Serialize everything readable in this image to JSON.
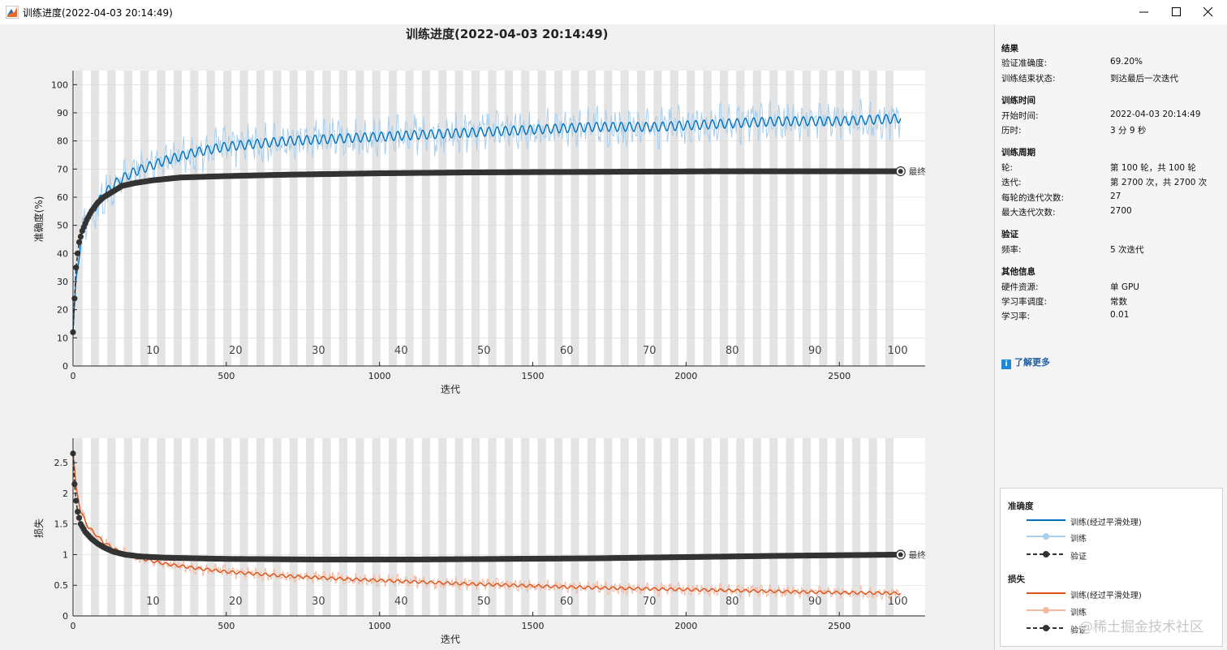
{
  "window": {
    "title": "训练进度(2022-04-03 20:14:49)",
    "minimize_icon": "minimize-icon",
    "maximize_icon": "maximize-icon",
    "close_icon": "close-icon"
  },
  "plot_title": "训练进度(2022-04-03 20:14:49)",
  "colors": {
    "train_acc_smoothed": "#0072bd",
    "train_acc_raw": "#a9cfee",
    "train_loss_smoothed": "#d95319",
    "train_loss_raw": "#f4b9a1",
    "validation": "#333333",
    "epoch_band": "#e4e4e4",
    "plot_bg": "#ffffff"
  },
  "chart_data": [
    {
      "type": "line",
      "name": "accuracy",
      "xlabel": "迭代",
      "ylabel": "准确度(%)",
      "xlim": [
        0,
        2780
      ],
      "ylim": [
        0,
        105
      ],
      "x_ticks": [
        0,
        500,
        1000,
        1500,
        2000,
        2500
      ],
      "y_ticks": [
        0,
        10,
        20,
        30,
        40,
        50,
        60,
        70,
        80,
        90,
        100
      ],
      "epoch_labels": [
        "10",
        "20",
        "30",
        "40",
        "50",
        "60",
        "70",
        "80",
        "90",
        "100"
      ],
      "epochs": 100,
      "iterations_per_epoch": 27,
      "final_marker_label": "最终",
      "series": [
        {
          "name": "训练(经过平滑处理)",
          "x": [
            0,
            10,
            25,
            50,
            100,
            150,
            200,
            300,
            400,
            500,
            700,
            900,
            1100,
            1300,
            1500,
            1700,
            1900,
            2100,
            2300,
            2500,
            2700
          ],
          "values": [
            12,
            30,
            45,
            53,
            61,
            66,
            69,
            73,
            76,
            78,
            80,
            81,
            82,
            83,
            84,
            85,
            85,
            86,
            87,
            87,
            88
          ]
        },
        {
          "name": "验证",
          "x": [
            0,
            5,
            10,
            15,
            20,
            30,
            45,
            60,
            80,
            100,
            130,
            160,
            200,
            260,
            350,
            500,
            700,
            1000,
            1300,
            1700,
            2100,
            2500,
            2700
          ],
          "values": [
            12,
            24,
            35,
            40,
            44,
            48,
            52,
            55,
            58,
            60,
            62,
            64,
            65,
            66,
            67,
            67.5,
            68,
            68.5,
            68.8,
            69,
            69.2,
            69.2,
            69.2
          ]
        }
      ]
    },
    {
      "type": "line",
      "name": "loss",
      "xlabel": "迭代",
      "ylabel": "损失",
      "xlim": [
        0,
        2780
      ],
      "ylim": [
        0,
        2.9
      ],
      "x_ticks": [
        0,
        500,
        1000,
        1500,
        2000,
        2500
      ],
      "y_ticks": [
        0,
        0.5,
        1,
        1.5,
        2,
        2.5
      ],
      "epoch_labels": [
        "10",
        "20",
        "30",
        "40",
        "50",
        "60",
        "70",
        "80",
        "90",
        "100"
      ],
      "epochs": 100,
      "iterations_per_epoch": 27,
      "final_marker_label": "最终",
      "series": [
        {
          "name": "训练(经过平滑处理)",
          "x": [
            0,
            10,
            25,
            50,
            100,
            150,
            200,
            300,
            400,
            500,
            700,
            900,
            1100,
            1300,
            1500,
            1700,
            1900,
            2100,
            2300,
            2500,
            2700
          ],
          "values": [
            2.65,
            2.1,
            1.7,
            1.45,
            1.2,
            1.05,
            0.96,
            0.85,
            0.78,
            0.72,
            0.65,
            0.6,
            0.56,
            0.52,
            0.49,
            0.46,
            0.44,
            0.42,
            0.4,
            0.38,
            0.37
          ]
        },
        {
          "name": "验证",
          "x": [
            0,
            5,
            10,
            15,
            25,
            40,
            60,
            80,
            100,
            130,
            170,
            220,
            300,
            500,
            800,
            1100,
            1400,
            1700,
            2000,
            2300,
            2500,
            2700
          ],
          "values": [
            2.65,
            2.15,
            1.88,
            1.7,
            1.5,
            1.37,
            1.26,
            1.18,
            1.12,
            1.05,
            1.0,
            0.97,
            0.95,
            0.93,
            0.92,
            0.92,
            0.93,
            0.94,
            0.96,
            0.98,
            0.99,
            1.0
          ]
        }
      ]
    }
  ],
  "info_panel": {
    "results": {
      "heading": "结果",
      "rows": [
        {
          "label": "验证准确度:",
          "value": "69.20%"
        },
        {
          "label": "训练结束状态:",
          "value": "到达最后一次迭代"
        }
      ]
    },
    "time": {
      "heading": "训练时间",
      "rows": [
        {
          "label": "开始时间:",
          "value": "2022-04-03 20:14:49"
        },
        {
          "label": "历时:",
          "value": "3 分 9 秒"
        }
      ]
    },
    "cycle": {
      "heading": "训练周期",
      "rows": [
        {
          "label": "轮:",
          "value": "第 100 轮，共 100 轮"
        },
        {
          "label": "迭代:",
          "value": "第 2700 次，共 2700 次"
        },
        {
          "label": "每轮的迭代次数:",
          "value": "27"
        },
        {
          "label": "最大迭代次数:",
          "value": "2700"
        }
      ]
    },
    "validation": {
      "heading": "验证",
      "rows": [
        {
          "label": "频率:",
          "value": "5 次迭代"
        }
      ]
    },
    "other": {
      "heading": "其他信息",
      "rows": [
        {
          "label": "硬件资源:",
          "value": "单 GPU"
        },
        {
          "label": "学习率调度:",
          "value": "常数"
        },
        {
          "label": "学习率:",
          "value": "0.01"
        }
      ]
    },
    "learn_more": "了解更多",
    "learn_more_icon": "info-icon"
  },
  "legend": {
    "accuracy_heading": "准确度",
    "loss_heading": "损失",
    "smoothed": "训练(经过平滑处理)",
    "train": "训练",
    "validation": "验证"
  },
  "watermark": "@稀土掘金技术社区"
}
